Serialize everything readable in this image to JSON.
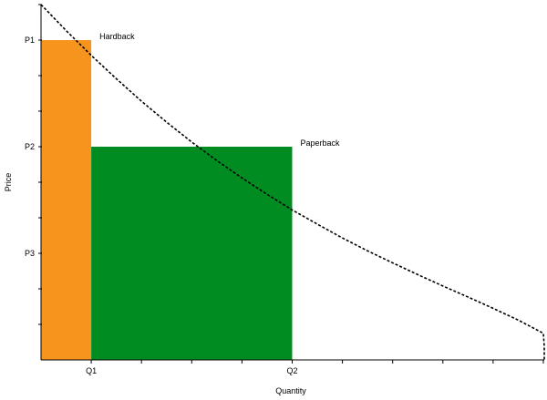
{
  "chart_data": {
    "type": "area",
    "title": "",
    "xlabel": "Quantity",
    "ylabel": "Price",
    "xlim": [
      0,
      10
    ],
    "ylim": [
      0,
      10
    ],
    "x_ticks": [
      {
        "value": 1,
        "label": "Q1"
      },
      {
        "value": 2,
        "label": ""
      },
      {
        "value": 3,
        "label": ""
      },
      {
        "value": 4,
        "label": ""
      },
      {
        "value": 5,
        "label": "Q2"
      },
      {
        "value": 6,
        "label": ""
      },
      {
        "value": 7,
        "label": ""
      },
      {
        "value": 8,
        "label": ""
      },
      {
        "value": 9,
        "label": ""
      },
      {
        "value": 10,
        "label": ""
      }
    ],
    "y_ticks": [
      {
        "value": 1,
        "label": ""
      },
      {
        "value": 2,
        "label": ""
      },
      {
        "value": 3,
        "label": "P3"
      },
      {
        "value": 4,
        "label": ""
      },
      {
        "value": 5,
        "label": ""
      },
      {
        "value": 6,
        "label": "P2"
      },
      {
        "value": 7,
        "label": ""
      },
      {
        "value": 8,
        "label": ""
      },
      {
        "value": 9,
        "label": "P1"
      },
      {
        "value": 10,
        "label": ""
      }
    ],
    "curve": {
      "style": "dashed",
      "color": "#000000",
      "points": [
        [
          0.0,
          10.0
        ],
        [
          0.5,
          9.27
        ],
        [
          1.0,
          8.57
        ],
        [
          1.5,
          7.91
        ],
        [
          2.0,
          7.28
        ],
        [
          2.5,
          6.69
        ],
        [
          3.0,
          6.13
        ],
        [
          3.5,
          5.61
        ],
        [
          4.0,
          5.12
        ],
        [
          4.5,
          4.66
        ],
        [
          5.0,
          4.22
        ],
        [
          5.5,
          3.82
        ],
        [
          6.0,
          3.43
        ],
        [
          6.5,
          3.07
        ],
        [
          7.0,
          2.73
        ],
        [
          7.5,
          2.4
        ],
        [
          8.0,
          2.08
        ],
        [
          8.5,
          1.77
        ],
        [
          9.0,
          1.45
        ],
        [
          9.5,
          1.12
        ],
        [
          10.0,
          0.75
        ],
        [
          10.5,
          0.38
        ],
        [
          11.0,
          0.0
        ]
      ]
    },
    "rectangles": [
      {
        "x0": 0,
        "x1": 1,
        "y0": 0,
        "y1": 9,
        "color": "#F7941D"
      },
      {
        "x0": 1,
        "x1": 5,
        "y0": 0,
        "y1": 6,
        "color": "#008C21"
      }
    ],
    "annotations": [
      {
        "text": "Hardback",
        "x": 1,
        "y": 9
      },
      {
        "text": "Paperback",
        "x": 5,
        "y": 6
      }
    ],
    "grid": false,
    "legend": "none"
  }
}
